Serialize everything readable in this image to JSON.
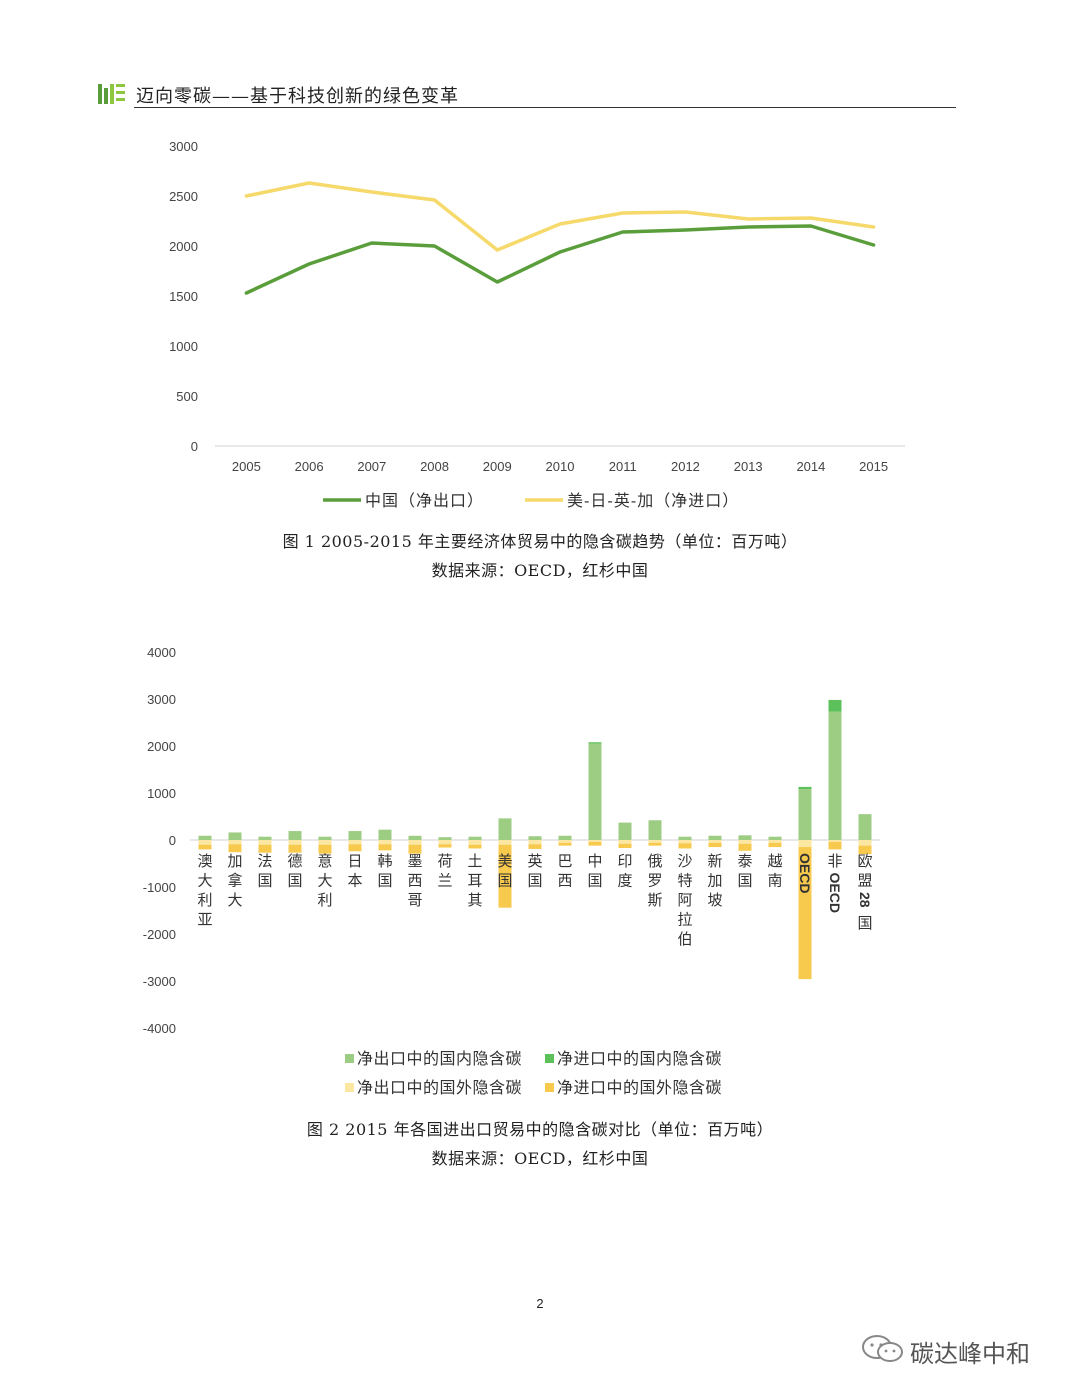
{
  "header": {
    "title": "迈向零碳——基于科技创新的绿色变革"
  },
  "colors": {
    "green_dark": "#5a9e3c",
    "yellow": "#f6d96b",
    "green_bar": "#9dcc83",
    "green_bar_top": "#5cc15a",
    "yellow_bar_light": "#fbe7a2",
    "yellow_bar": "#f7c94d"
  },
  "figure1": {
    "caption": "图 1 2005-2015 年主要经济体贸易中的隐含碳趋势（单位：百万吨）",
    "source": "数据来源：OECD，红杉中国"
  },
  "figure2": {
    "caption": "图 2 2015 年各国进出口贸易中的隐含碳对比（单位：百万吨）",
    "source": "数据来源：OECD，红杉中国"
  },
  "page_number": "2",
  "watermark": "碳达峰中和",
  "chart_data": [
    {
      "type": "line",
      "x": [
        "2005",
        "2006",
        "2007",
        "2008",
        "2009",
        "2010",
        "2011",
        "2012",
        "2013",
        "2014",
        "2015"
      ],
      "series": [
        {
          "name": "中国（净出口）",
          "color": "#5a9e3c",
          "values": [
            1530,
            1820,
            2030,
            2000,
            1640,
            1940,
            2140,
            2160,
            2190,
            2200,
            2010
          ]
        },
        {
          "name": "美-日-英-加（净进口）",
          "color": "#f6d96b",
          "values": [
            2500,
            2630,
            2540,
            2460,
            1960,
            2220,
            2330,
            2340,
            2270,
            2280,
            2190
          ]
        }
      ],
      "yticks": [
        0,
        500,
        1000,
        1500,
        2000,
        2500,
        3000
      ],
      "ylim": [
        0,
        3000
      ],
      "legend": "bottom"
    },
    {
      "type": "bar",
      "stacked": true,
      "categories": [
        "澳大利亚",
        "加拿大",
        "法国",
        "德国",
        "意大利",
        "日本",
        "韩国",
        "墨西哥",
        "荷兰",
        "土耳其",
        "美国",
        "英国",
        "巴西",
        "中国",
        "印度",
        "俄罗斯",
        "沙特阿拉伯",
        "新加坡",
        "泰国",
        "越南",
        "OECD",
        "非OECD",
        "欧盟28国"
      ],
      "series": [
        {
          "name": "净出口中的国内隐含碳",
          "color": "#9dcc83",
          "values": [
            90,
            160,
            70,
            190,
            70,
            190,
            220,
            90,
            60,
            70,
            460,
            80,
            90,
            2050,
            370,
            420,
            70,
            90,
            100,
            70,
            1080,
            2730,
            550
          ]
        },
        {
          "name": "净进口中的国内隐含碳",
          "color": "#5cc15a",
          "values": [
            0,
            0,
            0,
            0,
            0,
            0,
            0,
            0,
            0,
            0,
            0,
            0,
            0,
            30,
            0,
            0,
            0,
            0,
            0,
            0,
            50,
            250,
            0
          ]
        },
        {
          "name": "净出口中的国外隐含碳",
          "color": "#fbe7a2",
          "values": [
            -100,
            -90,
            -100,
            -100,
            -100,
            -90,
            -90,
            -100,
            -90,
            -100,
            -100,
            -90,
            -60,
            -40,
            -80,
            -60,
            -70,
            -60,
            -80,
            -60,
            -150,
            -40,
            -120
          ]
        },
        {
          "name": "净进口中的国外隐含碳",
          "color": "#f7c94d",
          "values": [
            -100,
            -170,
            -170,
            -170,
            -190,
            -150,
            -130,
            -190,
            -70,
            -80,
            -1340,
            -100,
            -60,
            -80,
            -90,
            -60,
            -110,
            -90,
            -150,
            -90,
            -2810,
            -160,
            -180
          ]
        }
      ],
      "yticks": [
        -4000,
        -3000,
        -2000,
        -1000,
        0,
        1000,
        2000,
        3000,
        4000
      ],
      "ylim": [
        -4000,
        4000
      ],
      "legend": "bottom"
    }
  ]
}
